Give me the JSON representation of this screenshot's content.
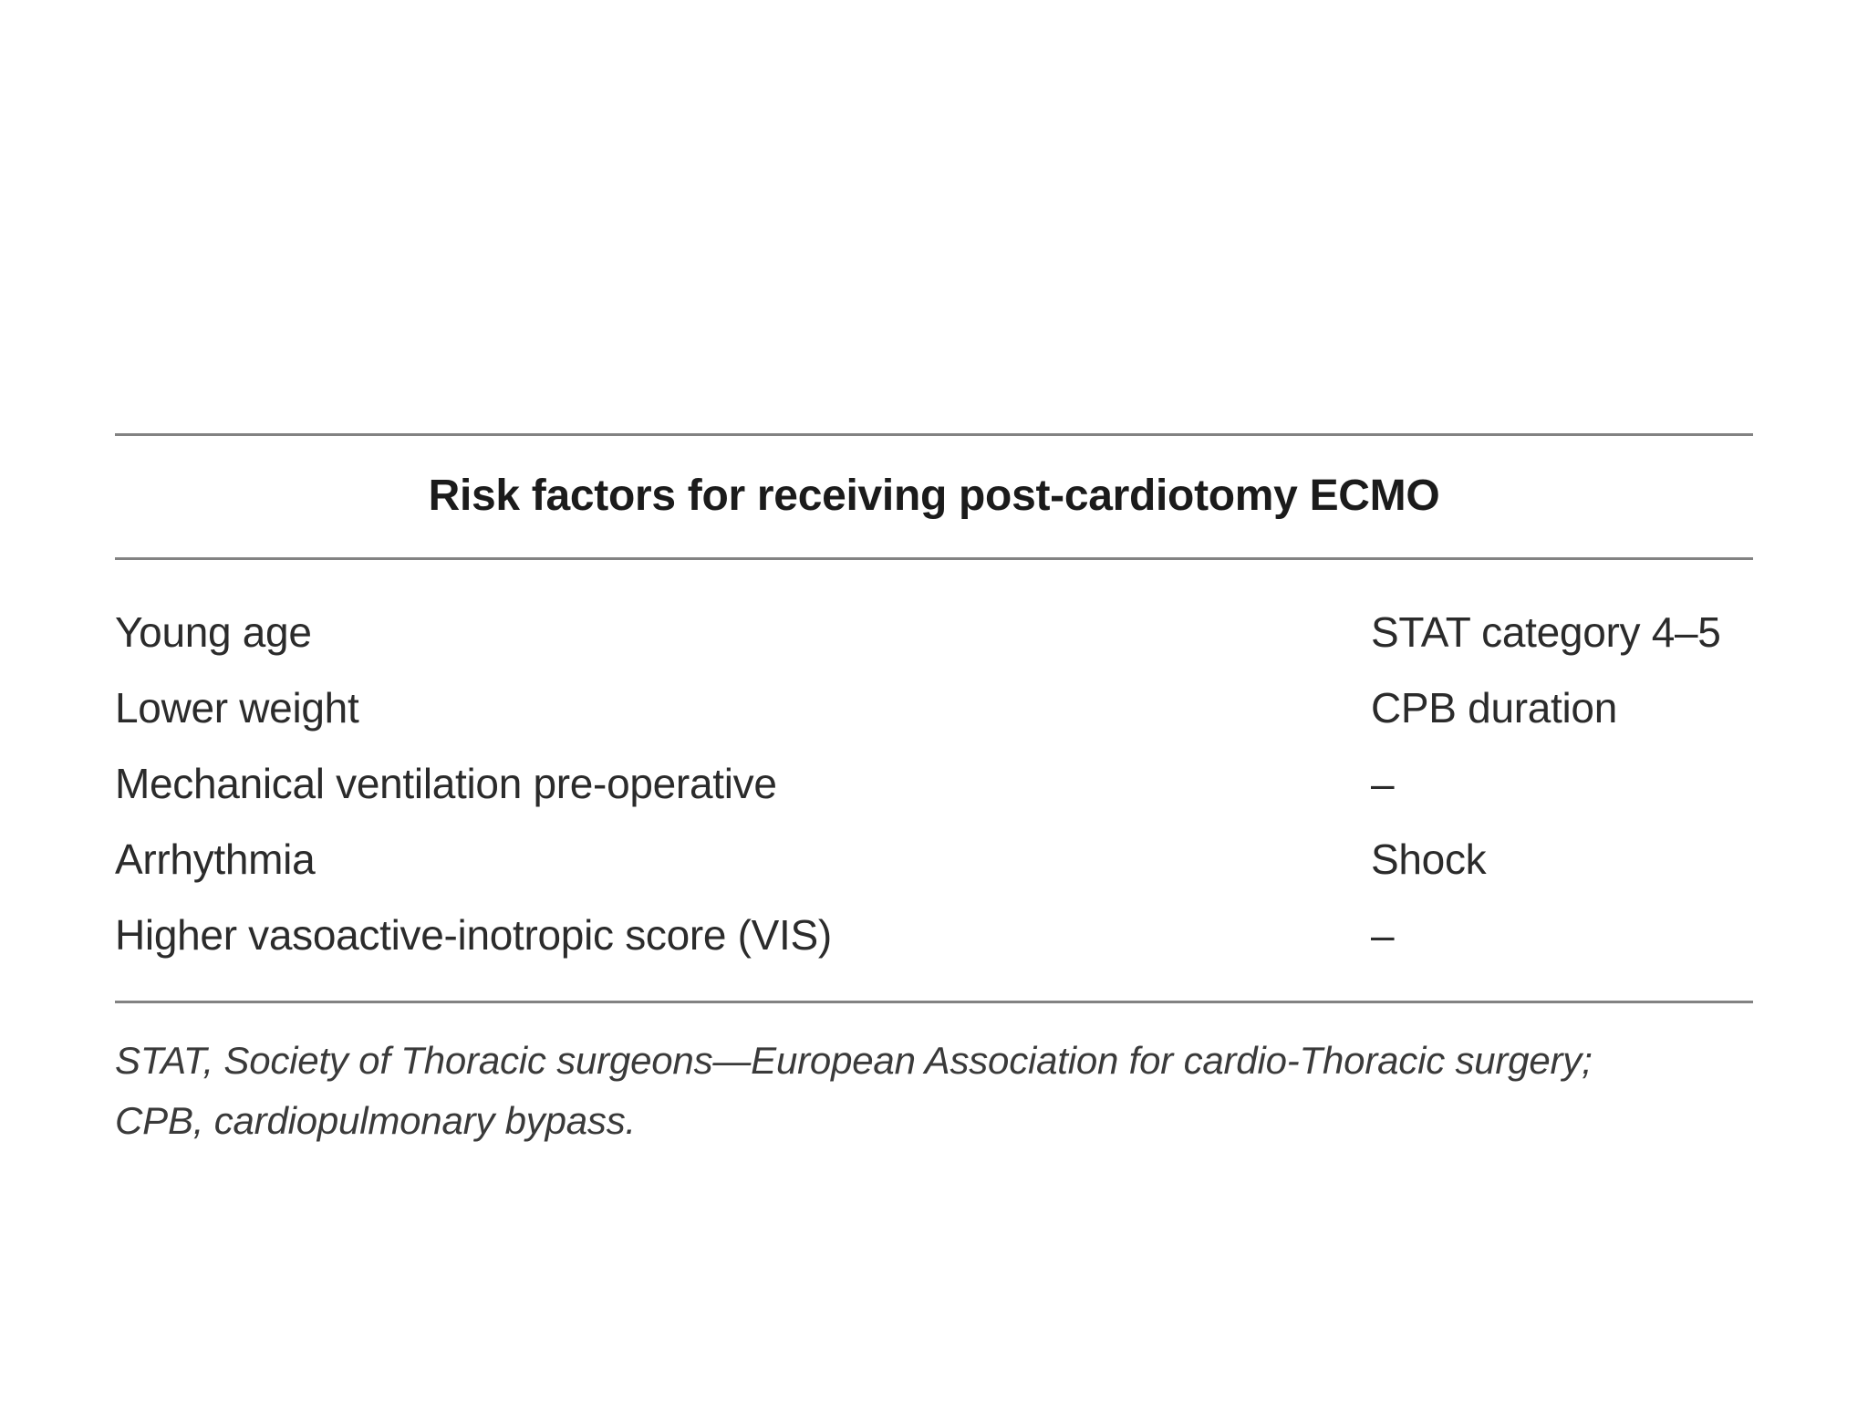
{
  "table": {
    "title": "Risk factors for receiving post-cardiotomy ECMO",
    "rows": [
      {
        "left": "Young age",
        "right": "STAT category 4–5"
      },
      {
        "left": "Lower weight",
        "right": "CPB duration"
      },
      {
        "left": "Mechanical ventilation pre-operative",
        "right": "–"
      },
      {
        "left": "Arrhythmia",
        "right": "Shock"
      },
      {
        "left": "Higher vasoactive-inotropic score (VIS)",
        "right": "–"
      }
    ],
    "footnote": {
      "line1": "STAT, Society of Thoracic surgeons—European Association for cardio-Thoracic surgery;",
      "line2": "CPB, cardiopulmonary bypass."
    },
    "colors": {
      "rule": "#828282",
      "title_text": "#1b1b1b",
      "body_text": "#2b2b2b",
      "footnote_text": "#3a3a3a",
      "background": "#ffffff"
    }
  }
}
